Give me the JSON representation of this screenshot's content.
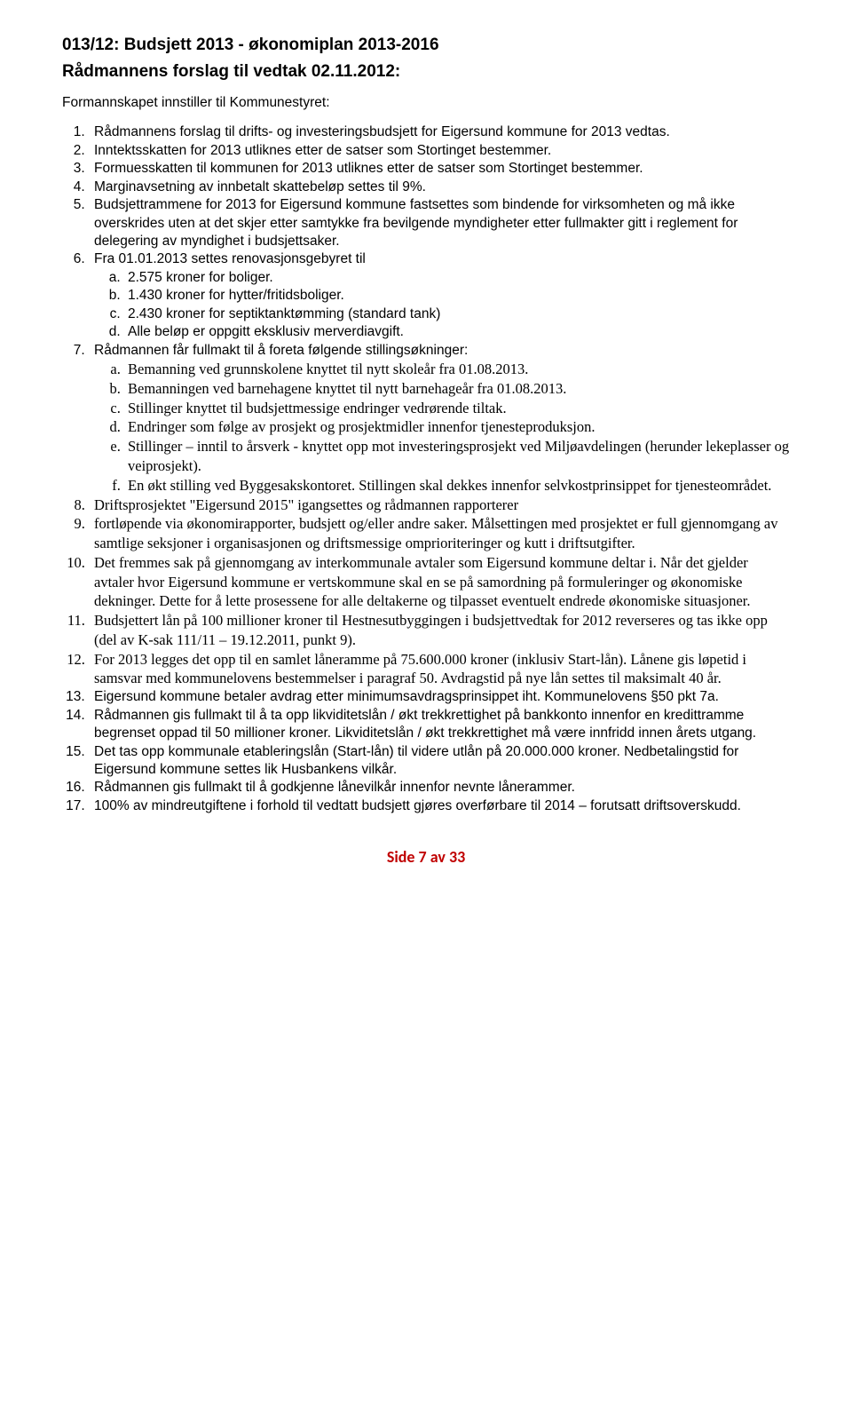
{
  "heading": {
    "line1": "013/12: Budsjett 2013 - økonomiplan 2013-2016",
    "line2": "Rådmannens forslag til vedtak 02.11.2012:"
  },
  "intro": "Formannskapet innstiller til Kommunestyret:",
  "items": {
    "i1": "Rådmannens forslag til drifts- og investeringsbudsjett for Eigersund kommune for 2013 vedtas.",
    "i2": "Inntektsskatten for 2013 utliknes etter de satser som Stortinget bestemmer.",
    "i3": "Formuesskatten til kommunen for 2013 utliknes etter de satser som Stortinget bestemmer.",
    "i4": "Marginavsetning av innbetalt skattebeløp settes til 9%.",
    "i5": "Budsjettrammene for 2013 for Eigersund kommune fastsettes som bindende for virksomheten og må ikke overskrides uten at det skjer etter samtykke fra bevilgende myndigheter etter fullmakter gitt i reglement for delegering av myndighet i budsjettsaker.",
    "i6": "Fra 01.01.2013 settes renovasjonsgebyret til",
    "i6a": "2.575 kroner for boliger.",
    "i6b": "1.430 kroner for hytter/fritidsboliger.",
    "i6c": "2.430 kroner for septiktanktømming (standard tank)",
    "i6d": "Alle beløp er oppgitt eksklusiv merverdiavgift.",
    "i7": "Rådmannen får fullmakt til å foreta følgende stillingsøkninger:",
    "i7a": "Bemanning ved grunnskolene knyttet til nytt skoleår fra 01.08.2013.",
    "i7b": "Bemanningen ved barnehagene knyttet til nytt barnehageår fra 01.08.2013.",
    "i7c": "Stillinger knyttet til budsjettmessige endringer vedrørende tiltak.",
    "i7d": "Endringer som følge av prosjekt og prosjektmidler innenfor tjenesteproduksjon.",
    "i7e": "Stillinger – inntil to årsverk - knyttet opp mot investeringsprosjekt ved Miljøavdelingen (herunder lekeplasser og veiprosjekt).",
    "i7f": "En økt stilling ved Byggesakskontoret. Stillingen skal dekkes innenfor selvkostprinsippet for tjenesteområdet.",
    "i8": "Driftsprosjektet \"Eigersund 2015\" igangsettes og rådmannen rapporterer",
    "i9": " fortløpende via økonomirapporter, budsjett og/eller andre saker. Målsettingen med prosjektet er full gjennomgang av samtlige seksjoner i organisasjonen og driftsmessige omprioriteringer og kutt i driftsutgifter.",
    "i10": "Det fremmes sak på gjennomgang av interkommunale avtaler som Eigersund kommune deltar i. Når det gjelder avtaler hvor Eigersund kommune er vertskommune skal en se på samordning på formuleringer og økonomiske dekninger. Dette for å lette prosessene for alle deltakerne og tilpasset eventuelt endrede økonomiske situasjoner.",
    "i11": "Budsjettert lån på 100 millioner kroner til Hestnesutbyggingen i budsjettvedtak for 2012 reverseres og tas ikke opp (del av K-sak 111/11 – 19.12.2011, punkt 9).",
    "i12": "For 2013 legges det opp til en samlet låneramme på 75.600.000 kroner (inklusiv Start-lån). Lånene gis løpetid i samsvar med kommunelovens bestemmelser i paragraf 50. Avdragstid på nye lån settes til maksimalt 40 år.",
    "i13": "Eigersund kommune betaler avdrag etter minimumsavdragsprinsippet iht. Kommunelovens §50 pkt 7a.",
    "i14": "Rådmannen gis fullmakt til å ta opp likviditetslån / økt trekkrettighet på bankkonto innenfor en kredittramme begrenset oppad til 50 millioner kroner. Likviditetslån / økt trekkrettighet må være innfridd innen årets utgang.",
    "i15": "Det tas opp kommunale etableringslån (Start-lån) til videre utlån på 20.000.000 kroner. Nedbetalingstid for Eigersund kommune settes lik Husbankens vilkår.",
    "i16": "Rådmannen gis fullmakt til å godkjenne lånevilkår innenfor nevnte lånerammer.",
    "i17": "100% av mindreutgiftene i forhold til vedtatt budsjett gjøres overførbare til 2014 – forutsatt driftsoverskudd."
  },
  "footer": "Side 7 av 33",
  "colors": {
    "text": "#000000",
    "footer": "#c00000",
    "background": "#ffffff"
  }
}
